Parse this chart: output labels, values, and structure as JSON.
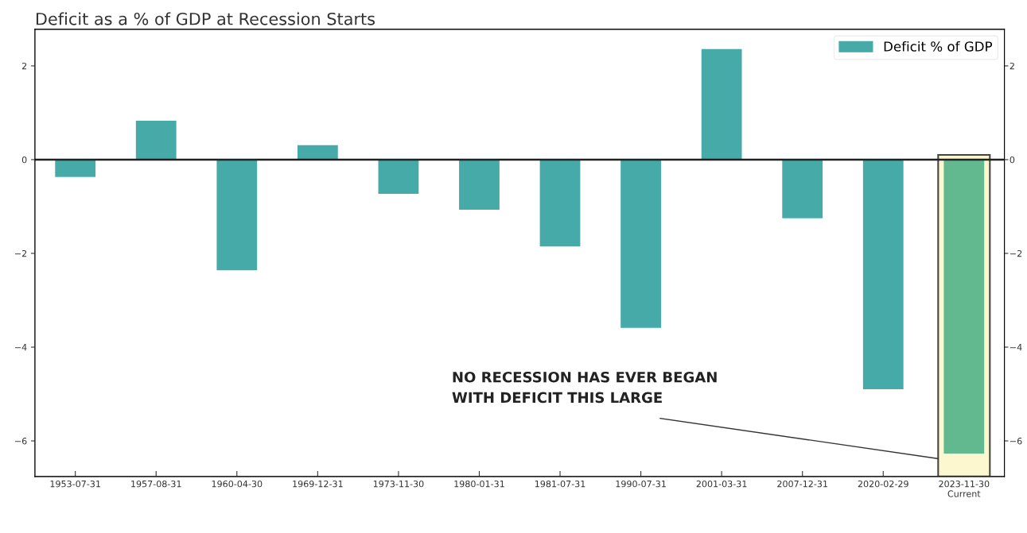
{
  "chart_data": {
    "type": "bar",
    "title": "Deficit as a % of GDP at Recession Starts",
    "categories": [
      "1953-07-31",
      "1957-08-31",
      "1960-04-30",
      "1969-12-31",
      "1973-11-30",
      "1980-01-31",
      "1981-07-31",
      "1990-07-31",
      "2001-03-31",
      "2007-12-31",
      "2020-02-29",
      "2023-11-30\nCurrent"
    ],
    "series": [
      {
        "name": "Deficit % of GDP",
        "color": "#45aaa8",
        "colors": [
          "#45aaa8",
          "#45aaa8",
          "#45aaa8",
          "#45aaa8",
          "#45aaa8",
          "#45aaa8",
          "#45aaa8",
          "#45aaa8",
          "#45aaa8",
          "#45aaa8",
          "#45aaa8",
          "#62b88f"
        ],
        "values": [
          -0.37,
          0.83,
          -2.36,
          0.31,
          -0.73,
          -1.07,
          -1.85,
          -3.59,
          2.36,
          -1.25,
          -4.9,
          -6.27
        ]
      }
    ],
    "ylim": [
      -6.76,
      2.78
    ],
    "yticks": [
      -6,
      -4,
      -2,
      0,
      2
    ],
    "y2lim": [
      -6.76,
      2.78
    ],
    "y2ticks": [
      -6,
      -4,
      -2,
      0,
      2
    ],
    "ref_lines": [
      {
        "axis": "y",
        "value": 0,
        "color": "#222222"
      }
    ],
    "annotations": [
      "NO RECESSION HAS EVER BEGAN\nWITH DEFICIT THIS LARGE"
    ],
    "legend": "top right",
    "grid": false
  }
}
